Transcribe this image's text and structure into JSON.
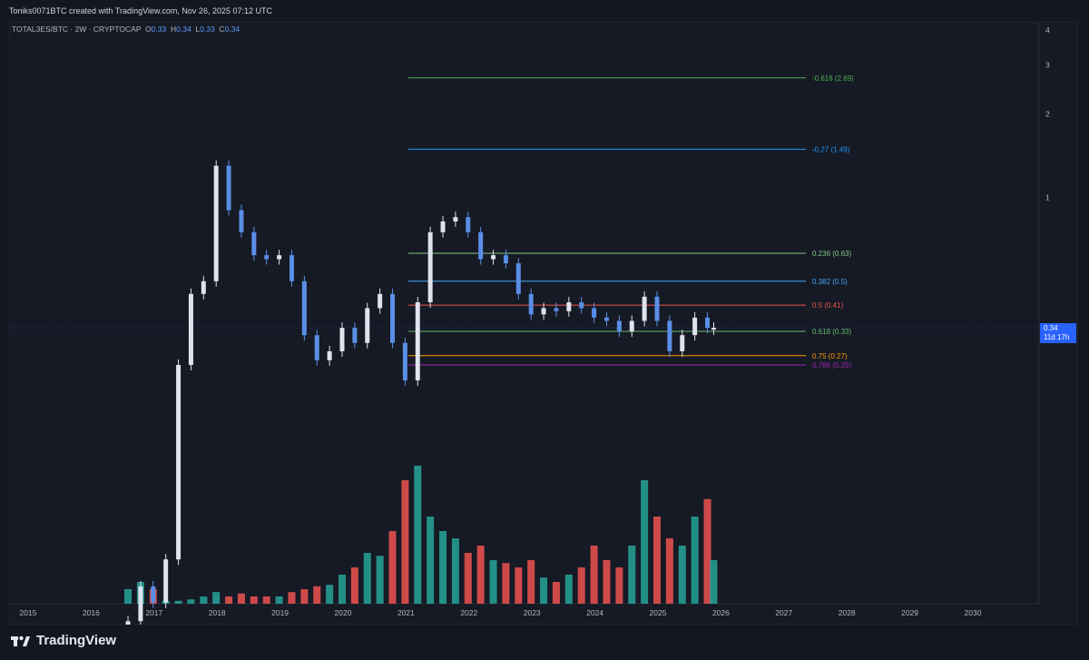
{
  "header": {
    "credit": "Toniks0071BTC created with TradingView.com, Nov 26, 2025 07:12 UTC"
  },
  "legend": {
    "symbol": "TOTAL3ES/BTC · 2W · CRYPTOCAP",
    "o_label": "O",
    "o": "0.33",
    "h_label": "H",
    "h": "0.34",
    "l_label": "L",
    "l": "0.33",
    "c_label": "C",
    "c": "0.34"
  },
  "price_tag": {
    "value": "0.34",
    "countdown": "11d 17h"
  },
  "brand": {
    "name": "TradingView"
  },
  "colors": {
    "up": "#dfe3ee",
    "down": "#5b8ee6",
    "vol_up": "#26a69a",
    "vol_down": "#ef5350",
    "accent": "#2962ff"
  },
  "chart_data": {
    "type": "candlestick",
    "y_scale": "log",
    "x_ticks": [
      "2015",
      "2016",
      "2017",
      "2018",
      "2019",
      "2020",
      "2021",
      "2022",
      "2023",
      "2024",
      "2025",
      "2026",
      "2027",
      "2028",
      "2029",
      "2030"
    ],
    "y_ticks": [
      1,
      2,
      3,
      4
    ],
    "series": [
      {
        "name": "TOTAL3ES/BTC",
        "x": [
          "2016.6",
          "2016.8",
          "2017.0",
          "2017.2",
          "2017.4",
          "2017.6",
          "2017.8",
          "2018.0",
          "2018.2",
          "2018.4",
          "2018.6",
          "2018.8",
          "2019.0",
          "2019.2",
          "2019.4",
          "2019.6",
          "2019.8",
          "2020.0",
          "2020.2",
          "2020.4",
          "2020.6",
          "2020.8",
          "2021.0",
          "2021.2",
          "2021.4",
          "2021.6",
          "2021.8",
          "2022.0",
          "2022.2",
          "2022.4",
          "2022.6",
          "2022.8",
          "2023.0",
          "2023.2",
          "2023.4",
          "2023.6",
          "2023.8",
          "2024.0",
          "2024.2",
          "2024.4",
          "2024.6",
          "2024.8",
          "2025.0",
          "2025.2",
          "2025.4",
          "2025.6",
          "2025.8",
          "2025.9"
        ],
        "values": [
          0.03,
          0.04,
          0.035,
          0.05,
          0.25,
          0.45,
          0.5,
          1.3,
          0.9,
          0.75,
          0.62,
          0.6,
          0.62,
          0.5,
          0.32,
          0.26,
          0.28,
          0.34,
          0.3,
          0.4,
          0.45,
          0.3,
          0.22,
          0.42,
          0.75,
          0.82,
          0.85,
          0.75,
          0.6,
          0.62,
          0.58,
          0.45,
          0.38,
          0.4,
          0.39,
          0.42,
          0.4,
          0.37,
          0.36,
          0.33,
          0.36,
          0.44,
          0.36,
          0.28,
          0.32,
          0.37,
          0.34,
          0.34
        ]
      }
    ],
    "volume_series": [
      {
        "name": "Volume",
        "values": [
          0.1,
          0.15,
          0.1,
          0.02,
          0.02,
          0.03,
          0.05,
          0.08,
          0.05,
          0.07,
          0.05,
          0.05,
          0.05,
          0.08,
          0.1,
          0.12,
          0.13,
          0.2,
          0.25,
          0.35,
          0.33,
          0.5,
          0.85,
          0.95,
          0.6,
          0.5,
          0.45,
          0.35,
          0.4,
          0.3,
          0.28,
          0.25,
          0.3,
          0.18,
          0.15,
          0.2,
          0.25,
          0.4,
          0.3,
          0.25,
          0.4,
          0.85,
          0.6,
          0.45,
          0.4,
          0.6,
          0.72,
          0.3
        ]
      }
    ],
    "fib_levels": [
      {
        "label": "-0.618 (2.69)",
        "value": 2.69,
        "color": "#4caf50"
      },
      {
        "label": "-0.27 (1.49)",
        "value": 1.49,
        "color": "#2196f3"
      },
      {
        "label": "0.236 (0.63)",
        "value": 0.63,
        "color": "#81c784"
      },
      {
        "label": "0.382 (0.5)",
        "value": 0.5,
        "color": "#42a5f5"
      },
      {
        "label": "0.5 (0.41)",
        "value": 0.41,
        "color": "#ef5350"
      },
      {
        "label": "0.618 (0.33)",
        "value": 0.33,
        "color": "#66bb6a"
      },
      {
        "label": "0.75 (0.27)",
        "value": 0.27,
        "color": "#ff9800"
      },
      {
        "label": "0.786 (0.25)",
        "value": 0.25,
        "color": "#9c27b0"
      }
    ],
    "current_price": 0.34
  }
}
